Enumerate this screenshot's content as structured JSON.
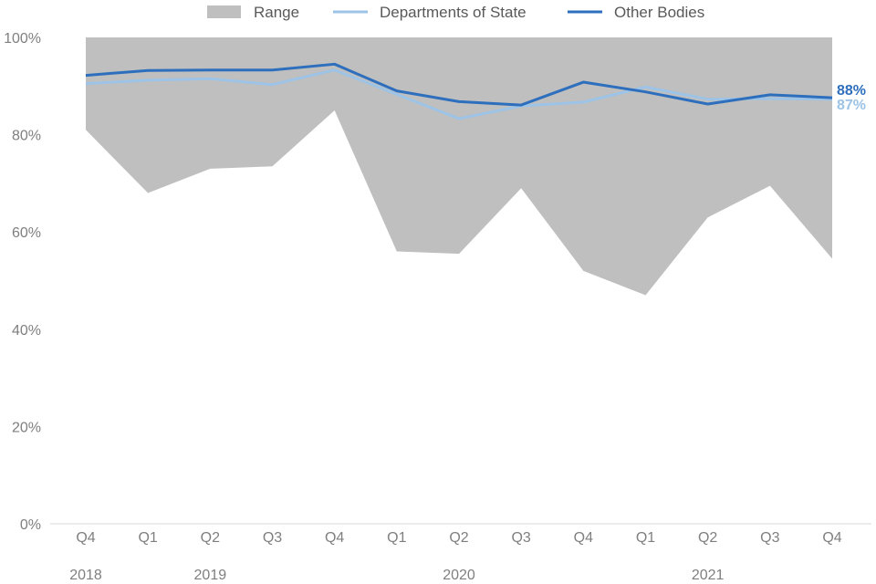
{
  "chart_data": {
    "type": "line",
    "title": "",
    "xlabel": "",
    "ylabel": "",
    "ylim": [
      0,
      100
    ],
    "y_ticks": [
      "0%",
      "20%",
      "40%",
      "60%",
      "80%",
      "100%"
    ],
    "y_tick_values": [
      0,
      20,
      40,
      60,
      80,
      100
    ],
    "categories": [
      "Q4",
      "Q1",
      "Q2",
      "Q3",
      "Q4",
      "Q1",
      "Q2",
      "Q3",
      "Q4",
      "Q1",
      "Q2",
      "Q3",
      "Q4"
    ],
    "years": [
      {
        "label": "2018",
        "index": 0
      },
      {
        "label": "2019",
        "index": 2
      },
      {
        "label": "2020",
        "index": 6
      },
      {
        "label": "2021",
        "index": 10
      }
    ],
    "range": {
      "name": "Range",
      "color": "#bfbfbf",
      "low": [
        81,
        68,
        73,
        73.5,
        85,
        56,
        55.5,
        69,
        52,
        47,
        63,
        69.5,
        54.5
      ],
      "high": [
        100,
        100,
        100,
        100,
        100,
        100,
        100,
        100,
        100,
        100,
        100,
        100,
        100
      ]
    },
    "series": [
      {
        "name": "Departments of State",
        "color": "#9dc3e6",
        "values": [
          90.5,
          91.2,
          91.5,
          90.3,
          93.3,
          88.3,
          83.3,
          85.9,
          86.7,
          89.8,
          87.3,
          87.4,
          87.3
        ],
        "end_label": "87%"
      },
      {
        "name": "Other Bodies",
        "color": "#2e6fbd",
        "values": [
          92.2,
          93.2,
          93.3,
          93.3,
          94.5,
          89.0,
          86.8,
          86.1,
          90.8,
          88.8,
          86.3,
          88.2,
          87.6
        ],
        "end_label": "88%"
      }
    ],
    "legend": {
      "position": "top",
      "items": [
        "Range",
        "Departments of State",
        "Other Bodies"
      ]
    },
    "grid": false
  }
}
